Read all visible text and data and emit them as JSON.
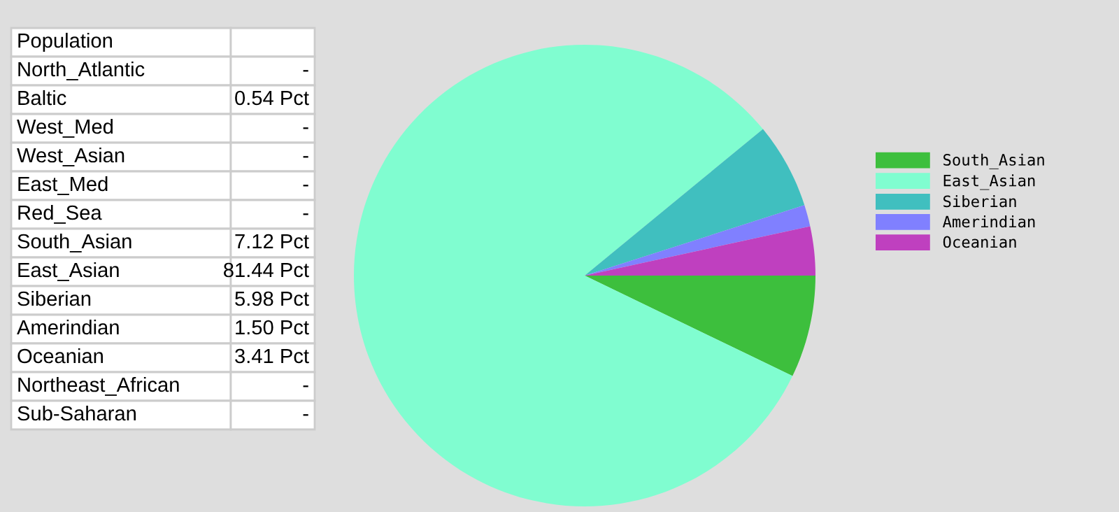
{
  "chart_data": [
    {
      "type": "other",
      "title": "Population",
      "categories": [
        "North_Atlantic",
        "Baltic",
        "West_Med",
        "West_Asian",
        "East_Med",
        "Red_Sea",
        "South_Asian",
        "East_Asian",
        "Siberian",
        "Amerindian",
        "Oceanian",
        "Northeast_African",
        "Sub-Saharan"
      ],
      "value_labels": [
        "-",
        "0.54 Pct",
        "-",
        "-",
        "-",
        "-",
        "7.12 Pct",
        "81.44 Pct",
        "5.98 Pct",
        "1.50 Pct",
        "3.41 Pct",
        "-",
        "-"
      ]
    },
    {
      "type": "pie",
      "categories": [
        "South_Asian",
        "East_Asian",
        "Siberian",
        "Amerindian",
        "Oceanian"
      ],
      "values": [
        7.12,
        81.44,
        5.98,
        1.5,
        3.41
      ],
      "colors": [
        "#3dbf3d",
        "#80fdd0",
        "#40bfbf",
        "#8080ff",
        "#bf40bf"
      ],
      "legend": "right"
    }
  ]
}
